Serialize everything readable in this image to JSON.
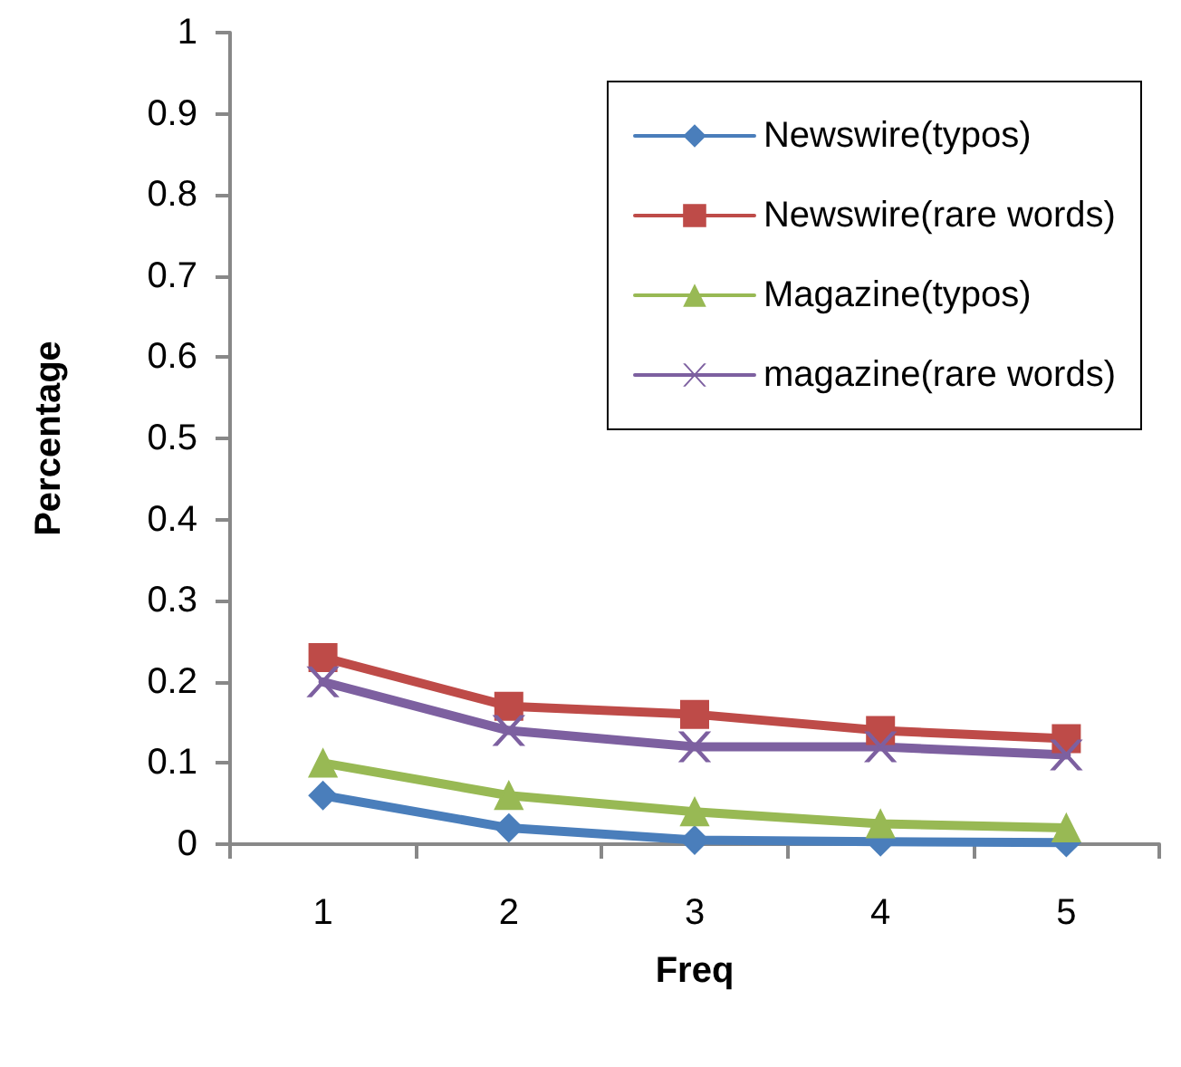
{
  "chart_data": {
    "type": "line",
    "xlabel": "Freq",
    "ylabel": "Percentage",
    "categories": [
      "1",
      "2",
      "3",
      "4",
      "5"
    ],
    "series": [
      {
        "name": "Newswire(typos)",
        "color": "#4a7ebb",
        "marker": "diamond",
        "values": [
          0.06,
          0.02,
          0.005,
          0.003,
          0.002
        ]
      },
      {
        "name": "Newswire(rare words)",
        "color": "#be4b48",
        "marker": "square",
        "values": [
          0.23,
          0.17,
          0.16,
          0.14,
          0.13
        ]
      },
      {
        "name": "Magazine(typos)",
        "color": "#98b954",
        "marker": "triangle",
        "values": [
          0.1,
          0.06,
          0.04,
          0.025,
          0.02
        ]
      },
      {
        "name": "magazine(rare words)",
        "color": "#7d60a0",
        "marker": "cross",
        "values": [
          0.2,
          0.14,
          0.12,
          0.12,
          0.11
        ]
      }
    ],
    "ylim": [
      0,
      1
    ],
    "yticks": [
      0,
      0.1,
      0.2,
      0.3,
      0.4,
      0.5,
      0.6,
      0.7,
      0.8,
      0.9,
      1
    ],
    "grid": false,
    "legend": "top right",
    "line_style": "solid"
  }
}
